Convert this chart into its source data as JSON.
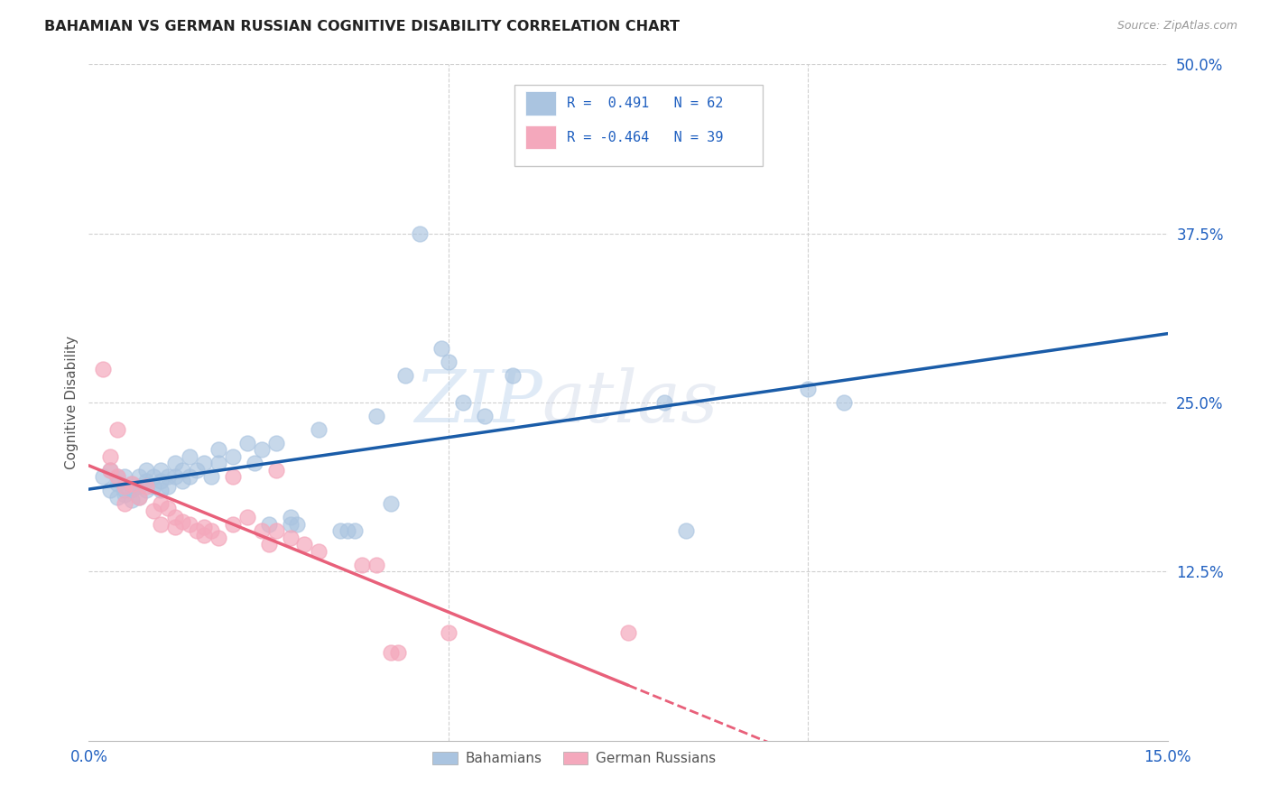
{
  "title": "BAHAMIAN VS GERMAN RUSSIAN COGNITIVE DISABILITY CORRELATION CHART",
  "source": "Source: ZipAtlas.com",
  "ylabel": "Cognitive Disability",
  "xlim": [
    0.0,
    0.15
  ],
  "ylim": [
    0.0,
    0.5
  ],
  "xticks": [
    0.0,
    0.05,
    0.1,
    0.15
  ],
  "yticks": [
    0.125,
    0.25,
    0.375,
    0.5
  ],
  "xticklabels": [
    "0.0%",
    "",
    "",
    "15.0%"
  ],
  "yticklabels": [
    "12.5%",
    "25.0%",
    "37.5%",
    "50.0%"
  ],
  "watermark_zip": "ZIP",
  "watermark_atlas": "atlas",
  "legend_r_blue": "R =  0.491",
  "legend_n_blue": "N = 62",
  "legend_r_pink": "R = -0.464",
  "legend_n_pink": "N = 39",
  "blue_color": "#aac4e0",
  "pink_color": "#f4a8bc",
  "blue_line_color": "#1a5ca8",
  "pink_line_color": "#e8607a",
  "blue_scatter": [
    [
      0.002,
      0.195
    ],
    [
      0.003,
      0.185
    ],
    [
      0.003,
      0.2
    ],
    [
      0.004,
      0.18
    ],
    [
      0.004,
      0.195
    ],
    [
      0.004,
      0.19
    ],
    [
      0.005,
      0.185
    ],
    [
      0.005,
      0.195
    ],
    [
      0.005,
      0.182
    ],
    [
      0.006,
      0.178
    ],
    [
      0.006,
      0.19
    ],
    [
      0.006,
      0.185
    ],
    [
      0.007,
      0.18
    ],
    [
      0.007,
      0.195
    ],
    [
      0.007,
      0.188
    ],
    [
      0.008,
      0.185
    ],
    [
      0.008,
      0.2
    ],
    [
      0.008,
      0.192
    ],
    [
      0.009,
      0.188
    ],
    [
      0.009,
      0.195
    ],
    [
      0.01,
      0.192
    ],
    [
      0.01,
      0.2
    ],
    [
      0.01,
      0.185
    ],
    [
      0.011,
      0.195
    ],
    [
      0.011,
      0.188
    ],
    [
      0.012,
      0.195
    ],
    [
      0.012,
      0.205
    ],
    [
      0.013,
      0.2
    ],
    [
      0.013,
      0.192
    ],
    [
      0.014,
      0.195
    ],
    [
      0.014,
      0.21
    ],
    [
      0.015,
      0.2
    ],
    [
      0.016,
      0.205
    ],
    [
      0.017,
      0.195
    ],
    [
      0.018,
      0.215
    ],
    [
      0.018,
      0.205
    ],
    [
      0.02,
      0.21
    ],
    [
      0.022,
      0.22
    ],
    [
      0.023,
      0.205
    ],
    [
      0.024,
      0.215
    ],
    [
      0.025,
      0.16
    ],
    [
      0.026,
      0.22
    ],
    [
      0.028,
      0.165
    ],
    [
      0.028,
      0.16
    ],
    [
      0.029,
      0.16
    ],
    [
      0.032,
      0.23
    ],
    [
      0.035,
      0.155
    ],
    [
      0.036,
      0.155
    ],
    [
      0.037,
      0.155
    ],
    [
      0.04,
      0.24
    ],
    [
      0.042,
      0.175
    ],
    [
      0.044,
      0.27
    ],
    [
      0.046,
      0.375
    ],
    [
      0.049,
      0.29
    ],
    [
      0.05,
      0.28
    ],
    [
      0.052,
      0.25
    ],
    [
      0.055,
      0.24
    ],
    [
      0.059,
      0.27
    ],
    [
      0.08,
      0.25
    ],
    [
      0.083,
      0.155
    ],
    [
      0.1,
      0.26
    ],
    [
      0.105,
      0.25
    ]
  ],
  "pink_scatter": [
    [
      0.002,
      0.275
    ],
    [
      0.003,
      0.2
    ],
    [
      0.003,
      0.21
    ],
    [
      0.004,
      0.195
    ],
    [
      0.004,
      0.23
    ],
    [
      0.005,
      0.188
    ],
    [
      0.005,
      0.175
    ],
    [
      0.006,
      0.19
    ],
    [
      0.007,
      0.18
    ],
    [
      0.008,
      0.188
    ],
    [
      0.009,
      0.17
    ],
    [
      0.01,
      0.175
    ],
    [
      0.01,
      0.16
    ],
    [
      0.011,
      0.172
    ],
    [
      0.012,
      0.165
    ],
    [
      0.012,
      0.158
    ],
    [
      0.013,
      0.162
    ],
    [
      0.014,
      0.16
    ],
    [
      0.015,
      0.155
    ],
    [
      0.016,
      0.152
    ],
    [
      0.016,
      0.158
    ],
    [
      0.017,
      0.155
    ],
    [
      0.018,
      0.15
    ],
    [
      0.02,
      0.195
    ],
    [
      0.02,
      0.16
    ],
    [
      0.022,
      0.165
    ],
    [
      0.024,
      0.155
    ],
    [
      0.025,
      0.145
    ],
    [
      0.026,
      0.2
    ],
    [
      0.026,
      0.155
    ],
    [
      0.028,
      0.15
    ],
    [
      0.03,
      0.145
    ],
    [
      0.032,
      0.14
    ],
    [
      0.038,
      0.13
    ],
    [
      0.04,
      0.13
    ],
    [
      0.042,
      0.065
    ],
    [
      0.043,
      0.065
    ],
    [
      0.05,
      0.08
    ],
    [
      0.075,
      0.08
    ]
  ],
  "background_color": "#ffffff",
  "grid_color": "#d0d0d0"
}
